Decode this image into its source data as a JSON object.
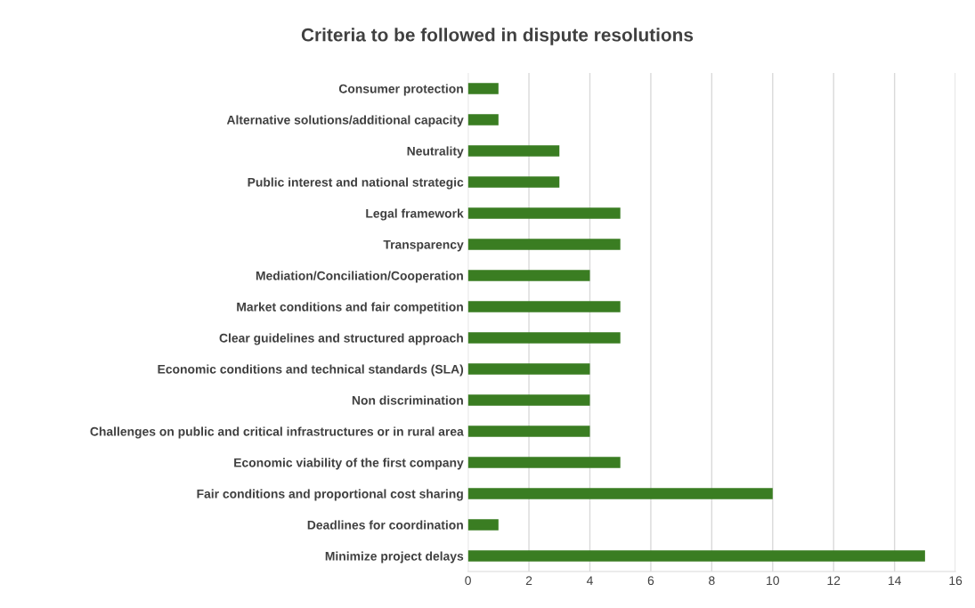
{
  "chart_data": {
    "type": "bar",
    "orientation": "horizontal",
    "title": "Criteria to be followed in dispute resolutions",
    "categories": [
      "Consumer protection",
      "Alternative solutions/additional capacity",
      "Neutrality",
      "Public interest and national strategic",
      "Legal framework",
      "Transparency",
      "Mediation/Conciliation/Cooperation",
      "Market conditions and fair competition",
      "Clear guidelines and structured approach",
      "Economic conditions and technical standards (SLA)",
      "Non discrimination",
      "Challenges on public and critical infrastructures or in rural area",
      "Economic viability of the first company",
      "Fair conditions and proportional cost sharing",
      "Deadlines for coordination",
      "Minimize project delays"
    ],
    "values": [
      1,
      1,
      3,
      3,
      5,
      5,
      4,
      5,
      5,
      4,
      4,
      4,
      5,
      10,
      1,
      15
    ],
    "color": "#3a7d22",
    "xlim": [
      0,
      16
    ],
    "xticks": [
      0,
      2,
      4,
      6,
      8,
      10,
      12,
      14,
      16
    ],
    "grid": "x"
  }
}
